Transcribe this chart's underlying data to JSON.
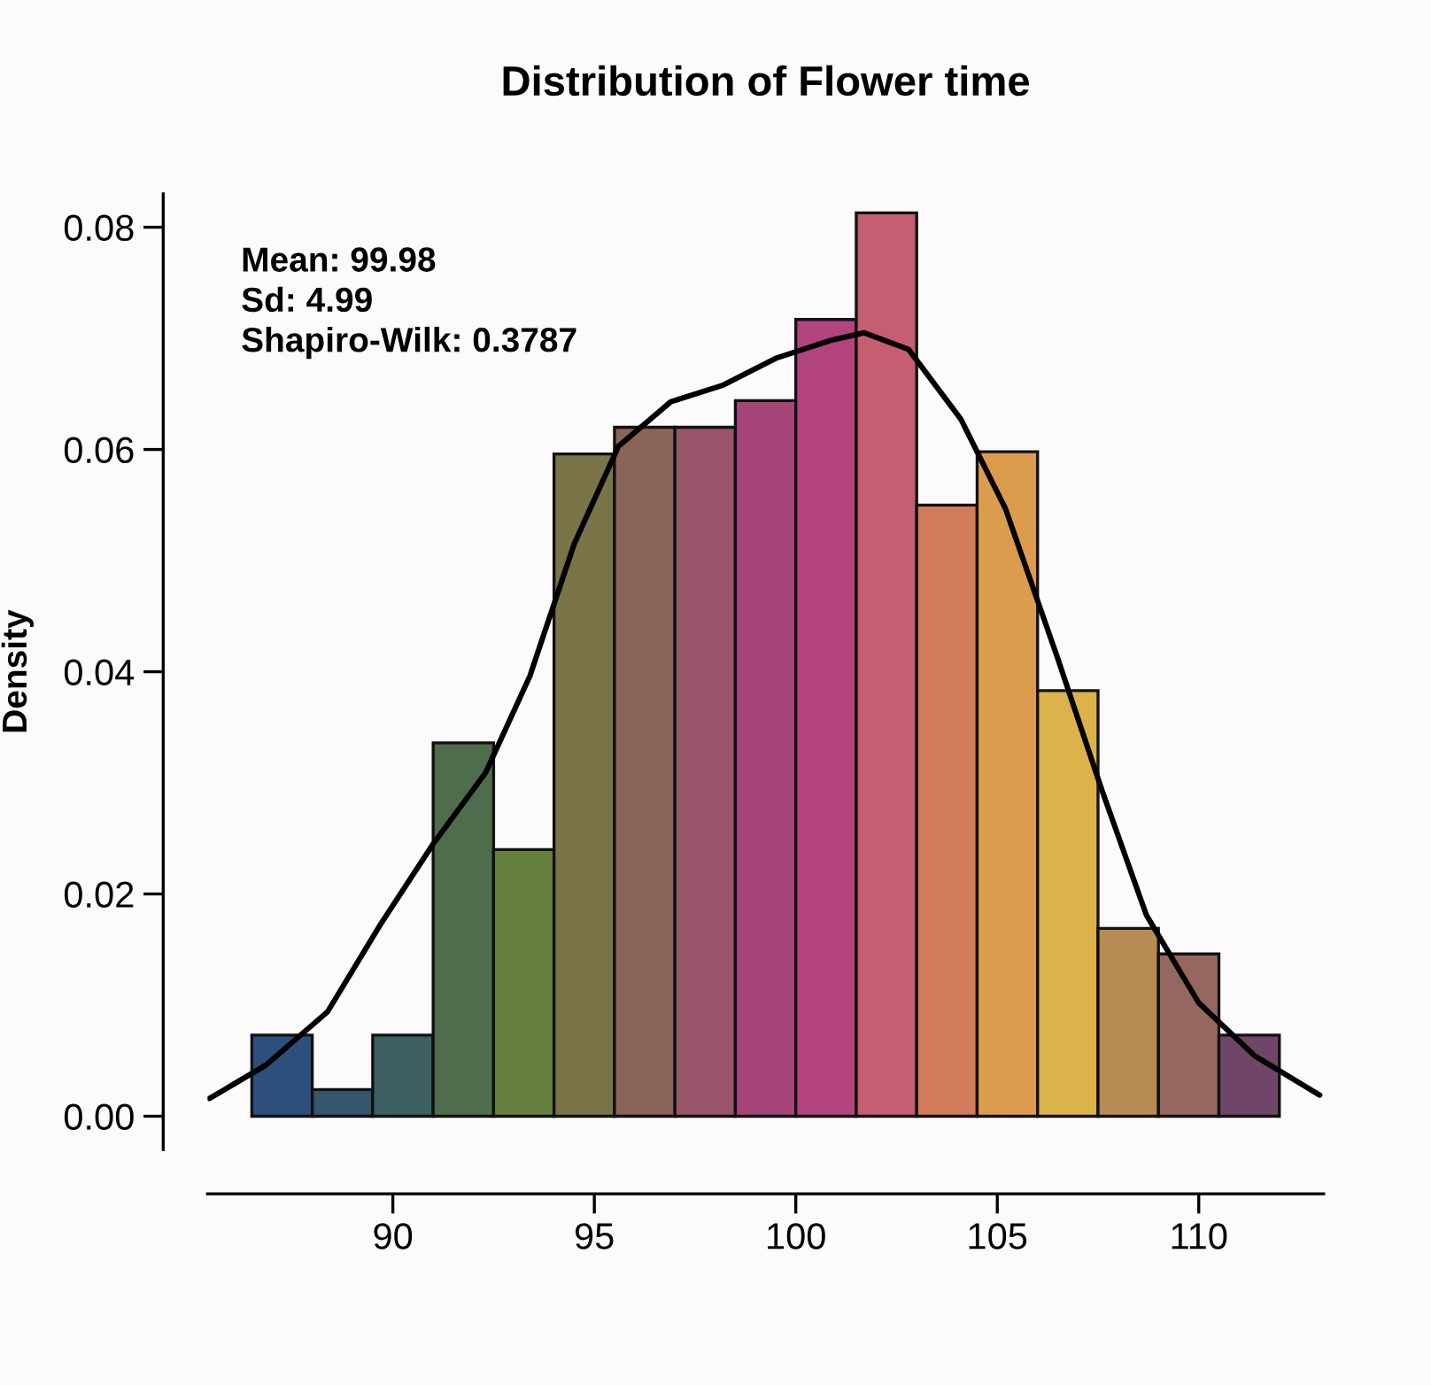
{
  "chart_data": {
    "type": "histogram",
    "title": "Distribution of Flower time",
    "ylabel": "Density",
    "bins": [
      86.5,
      88,
      89.5,
      91,
      92.5,
      94,
      95.5,
      97,
      98.5,
      100,
      101.5,
      103,
      104.5,
      106,
      107.5,
      109,
      110.5,
      112
    ],
    "values": [
      0.0073,
      0.0024,
      0.0073,
      0.0336,
      0.024,
      0.0596,
      0.062,
      0.062,
      0.0644,
      0.0717,
      0.0813,
      0.055,
      0.0598,
      0.0383,
      0.0169,
      0.0146,
      0.0073
    ],
    "colors": [
      "#2c4f7c",
      "#36566c",
      "#3e6060",
      "#4f6d4c",
      "#66803f",
      "#7a7548",
      "#8a6458",
      "#985468",
      "#a64678",
      "#b2437d",
      "#c45e70",
      "#d27c5c",
      "#dc9c4e",
      "#dcb24a",
      "#b98c55",
      "#966760",
      "#6f4568"
    ],
    "series": [
      {
        "type": "line",
        "color": "#000000",
        "x": [
          85.45,
          86.85,
          88.38,
          89.7,
          91.0,
          92.3,
          93.4,
          94.5,
          95.6,
          96.9,
          98.2,
          99.5,
          100.85,
          101.7,
          102.8,
          104.1,
          105.2,
          106.5,
          107.6,
          108.7,
          110.0,
          111.4,
          113.0
        ],
        "values": [
          0.0016,
          0.0046,
          0.0094,
          0.0173,
          0.0245,
          0.0309,
          0.0396,
          0.0515,
          0.0603,
          0.0643,
          0.0658,
          0.0682,
          0.0698,
          0.0705,
          0.069,
          0.0627,
          0.0547,
          0.0412,
          0.0293,
          0.0181,
          0.0102,
          0.0054,
          0.0019
        ]
      }
    ],
    "annotations": [
      "Mean: 99.98",
      "Sd: 4.99",
      "Shapiro-Wilk: 0.3787"
    ],
    "xlim": [
      85.4,
      113.1
    ],
    "ylim": [
      -0.003,
      0.083
    ],
    "xticks": [
      90,
      95,
      100,
      105,
      110
    ],
    "yticks": [
      {
        "value": 0,
        "label": "0.00"
      },
      {
        "value": 0.02,
        "label": "0.02"
      },
      {
        "value": 0.04,
        "label": "0.04"
      },
      {
        "value": 0.06,
        "label": "0.06"
      },
      {
        "value": 0.08,
        "label": "0.08"
      }
    ],
    "grid": false,
    "legend": false
  }
}
